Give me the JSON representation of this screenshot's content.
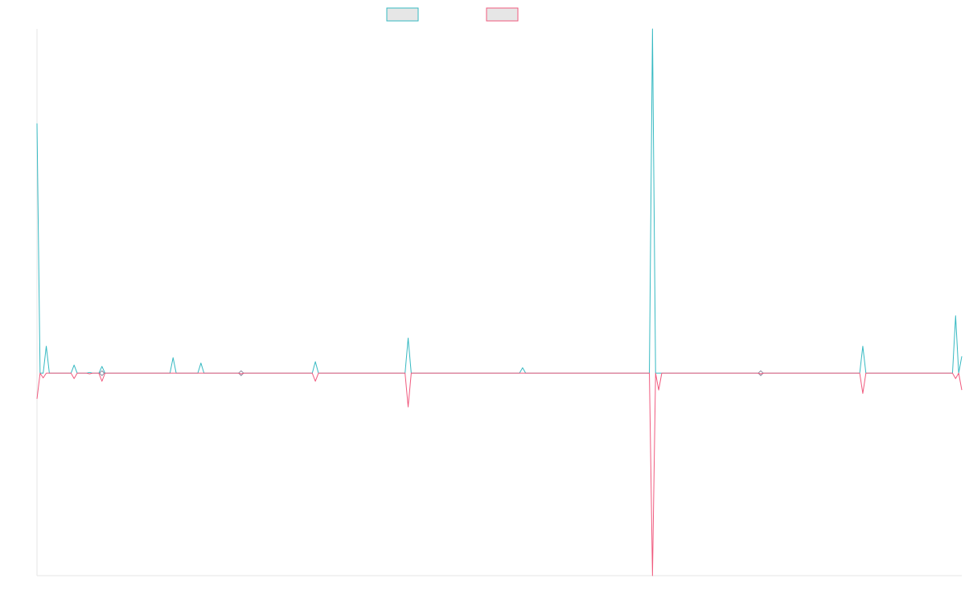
{
  "chart_data": {
    "type": "line",
    "title": "",
    "xlabel": "",
    "ylabel": "",
    "grid": false,
    "legend_position": "top-center",
    "x_count": 300,
    "ylim": [
      -3.0,
      5.1
    ],
    "series": [
      {
        "color": "#36b9c2",
        "fill": "#e6e6e6",
        "points": [
          [
            0,
            3.7
          ],
          [
            1,
            0.0
          ],
          [
            3,
            0.4
          ],
          [
            4,
            0.0
          ],
          [
            11,
            0.0
          ],
          [
            12,
            0.12
          ],
          [
            13,
            0.0
          ],
          [
            16,
            0.0
          ],
          [
            17,
            0.01
          ],
          [
            18,
            0.0
          ],
          [
            20,
            0.0
          ],
          [
            21,
            0.1
          ],
          [
            22,
            0.0
          ],
          [
            43,
            0.0
          ],
          [
            44,
            0.23
          ],
          [
            45,
            0.0
          ],
          [
            52,
            0.0
          ],
          [
            53,
            0.15
          ],
          [
            54,
            0.0
          ],
          [
            65,
            0.0
          ],
          [
            66,
            0.01
          ],
          [
            67,
            0.0
          ],
          [
            89,
            0.0
          ],
          [
            90,
            0.17
          ],
          [
            91,
            0.0
          ],
          [
            119,
            0.0
          ],
          [
            120,
            0.52
          ],
          [
            121,
            0.0
          ],
          [
            156,
            0.0
          ],
          [
            157,
            0.08
          ],
          [
            158,
            0.0
          ],
          [
            198,
            0.0
          ],
          [
            199,
            5.1
          ],
          [
            200,
            0.0
          ],
          [
            233,
            0.0
          ],
          [
            234,
            0.0
          ],
          [
            235,
            0.0
          ],
          [
            266,
            0.0
          ],
          [
            267,
            0.4
          ],
          [
            268,
            0.0
          ],
          [
            296,
            0.0
          ],
          [
            297,
            0.85
          ],
          [
            298,
            0.0
          ],
          [
            299,
            0.25
          ]
        ]
      },
      {
        "color": "#f05a7e",
        "fill": "#e6e6e6",
        "points": [
          [
            0,
            -0.38
          ],
          [
            1,
            0.0
          ],
          [
            2,
            -0.07
          ],
          [
            3,
            0.0
          ],
          [
            11,
            0.0
          ],
          [
            12,
            -0.08
          ],
          [
            13,
            0.0
          ],
          [
            16,
            0.0
          ],
          [
            17,
            -0.01
          ],
          [
            18,
            0.0
          ],
          [
            20,
            0.0
          ],
          [
            21,
            -0.12
          ],
          [
            22,
            0.0
          ],
          [
            65,
            0.0
          ],
          [
            66,
            -0.01
          ],
          [
            67,
            0.0
          ],
          [
            89,
            0.0
          ],
          [
            90,
            -0.12
          ],
          [
            91,
            0.0
          ],
          [
            119,
            0.0
          ],
          [
            120,
            -0.5
          ],
          [
            121,
            0.0
          ],
          [
            198,
            0.0
          ],
          [
            199,
            -3.0
          ],
          [
            200,
            0.0
          ],
          [
            201,
            -0.25
          ],
          [
            202,
            0.0
          ],
          [
            233,
            0.0
          ],
          [
            234,
            -0.01
          ],
          [
            235,
            0.0
          ],
          [
            266,
            0.0
          ],
          [
            267,
            -0.3
          ],
          [
            268,
            0.0
          ],
          [
            296,
            0.0
          ],
          [
            297,
            -0.08
          ],
          [
            298,
            0.0
          ],
          [
            299,
            -0.25
          ]
        ]
      }
    ]
  }
}
